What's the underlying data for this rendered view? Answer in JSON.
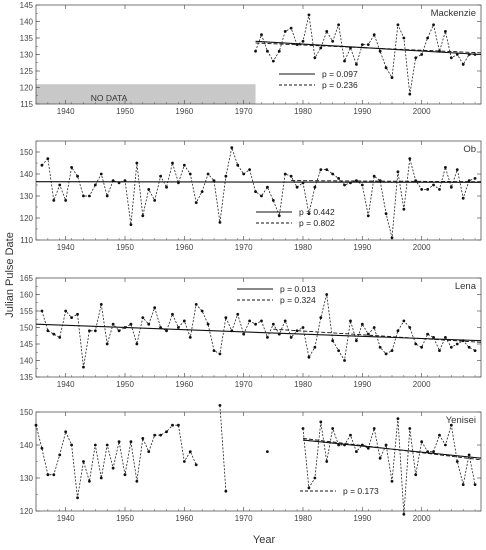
{
  "figure": {
    "ylabel": "Julian Pulse Date",
    "xlabel": "Year"
  },
  "chart_data": [
    {
      "type": "line",
      "panel_label": "Mackenzie",
      "xlim": [
        1935,
        2010
      ],
      "ylim": [
        115,
        145
      ],
      "yticks": [
        115,
        120,
        125,
        130,
        135,
        140,
        145
      ],
      "xticks": [
        1940,
        1950,
        1960,
        1970,
        1980,
        1990,
        2000
      ],
      "no_data": {
        "label": "NO DATA",
        "x_from": 1935,
        "x_to": 1972,
        "y_from": 115,
        "y_to": 121
      },
      "x": [
        1972,
        1973,
        1974,
        1975,
        1976,
        1977,
        1978,
        1979,
        1980,
        1981,
        1982,
        1983,
        1984,
        1985,
        1986,
        1987,
        1988,
        1989,
        1990,
        1991,
        1992,
        1993,
        1994,
        1995,
        1996,
        1997,
        1998,
        1999,
        2000,
        2001,
        2002,
        2003,
        2004,
        2005,
        2006,
        2007,
        2008,
        2009
      ],
      "values": [
        131,
        136,
        131,
        128,
        131,
        137,
        138,
        133,
        134,
        142,
        129,
        132,
        137,
        134,
        139,
        128,
        132,
        127,
        133,
        133,
        136,
        131,
        126,
        123,
        139,
        135,
        118,
        129,
        130,
        135,
        139,
        131,
        137,
        129,
        130,
        127,
        130,
        130
      ],
      "trends": [
        {
          "style": "solid",
          "p_label": "p = 0.097",
          "x": [
            1972,
            2010
          ],
          "y": [
            134,
            130
          ]
        },
        {
          "style": "dashed",
          "p_label": "p = 0.236",
          "x": [
            1972,
            2010
          ],
          "y": [
            133.5,
            130.5
          ]
        }
      ]
    },
    {
      "type": "line",
      "panel_label": "Ob",
      "xlim": [
        1935,
        2010
      ],
      "ylim": [
        110,
        155
      ],
      "yticks": [
        110,
        120,
        130,
        140,
        150
      ],
      "xticks": [
        1940,
        1950,
        1960,
        1970,
        1980,
        1990,
        2000
      ],
      "x": [
        1936,
        1937,
        1938,
        1939,
        1940,
        1941,
        1942,
        1943,
        1944,
        1945,
        1946,
        1947,
        1948,
        1949,
        1950,
        1951,
        1952,
        1953,
        1954,
        1955,
        1956,
        1957,
        1958,
        1959,
        1960,
        1961,
        1962,
        1963,
        1964,
        1965,
        1966,
        1967,
        1968,
        1969,
        1970,
        1971,
        1972,
        1973,
        1974,
        1975,
        1976,
        1977,
        1978,
        1979,
        1980,
        1981,
        1982,
        1983,
        1984,
        1985,
        1986,
        1987,
        1988,
        1989,
        1990,
        1991,
        1992,
        1993,
        1994,
        1995,
        1996,
        1997,
        1998,
        1999,
        2000,
        2001,
        2002,
        2003,
        2004,
        2005,
        2006,
        2007,
        2008,
        2009
      ],
      "values": [
        144,
        147,
        128,
        135,
        128,
        143,
        139,
        130,
        130,
        135,
        140,
        130,
        137,
        136,
        137,
        117,
        145,
        121,
        133,
        128,
        139,
        134,
        145,
        136,
        144,
        140,
        127,
        132,
        140,
        137,
        118,
        139,
        152,
        144,
        140,
        142,
        132,
        130,
        134,
        128,
        121,
        140,
        139,
        134,
        136,
        122,
        134,
        142,
        142,
        140,
        138,
        135,
        136,
        137,
        135,
        121,
        139,
        137,
        122,
        111,
        141,
        124,
        147,
        137,
        133,
        133,
        135,
        133,
        143,
        134,
        142,
        129,
        137,
        138
      ],
      "trends": [
        {
          "style": "solid",
          "p_label": "p = 0.442",
          "x": [
            1935,
            2010
          ],
          "y": [
            136.5,
            136.2
          ]
        },
        {
          "style": "dashed",
          "p_label": "p = 0.802",
          "x": [
            1978,
            2010
          ],
          "y": [
            137,
            136.5
          ]
        }
      ]
    },
    {
      "type": "line",
      "panel_label": "Lena",
      "xlim": [
        1935,
        2010
      ],
      "ylim": [
        135,
        165
      ],
      "yticks": [
        135,
        140,
        145,
        150,
        155,
        160,
        165
      ],
      "xticks": [
        1940,
        1950,
        1960,
        1970,
        1980,
        1990,
        2000
      ],
      "x": [
        1936,
        1937,
        1938,
        1939,
        1940,
        1941,
        1942,
        1943,
        1944,
        1945,
        1946,
        1947,
        1948,
        1949,
        1950,
        1951,
        1952,
        1953,
        1954,
        1955,
        1956,
        1957,
        1958,
        1959,
        1960,
        1961,
        1962,
        1963,
        1964,
        1965,
        1966,
        1967,
        1968,
        1969,
        1970,
        1971,
        1972,
        1973,
        1974,
        1975,
        1976,
        1977,
        1978,
        1979,
        1980,
        1981,
        1982,
        1983,
        1984,
        1985,
        1986,
        1987,
        1988,
        1989,
        1990,
        1991,
        1992,
        1993,
        1994,
        1995,
        1996,
        1997,
        1998,
        1999,
        2000,
        2001,
        2002,
        2003,
        2004,
        2005,
        2006,
        2007,
        2008,
        2009
      ],
      "values": [
        155,
        149,
        148,
        147,
        155,
        153,
        154,
        138,
        149,
        149,
        157,
        145,
        151,
        149,
        150,
        151,
        145,
        153,
        151,
        156,
        150,
        149,
        154,
        150,
        152,
        147,
        157,
        155,
        151,
        143,
        142,
        153,
        149,
        154,
        148,
        152,
        151,
        152,
        147,
        151,
        148,
        152,
        147,
        149,
        150,
        141,
        144,
        153,
        160,
        146,
        143,
        140,
        152,
        146,
        151,
        148,
        150,
        144,
        142,
        143,
        149,
        152,
        150,
        145,
        144,
        148,
        147,
        143,
        147,
        144,
        145,
        146,
        144,
        143
      ],
      "trends": [
        {
          "style": "solid",
          "p_label": "p = 0.013",
          "x": [
            1935,
            2010
          ],
          "y": [
            151,
            146
          ]
        },
        {
          "style": "dashed",
          "p_label": "p = 0.324",
          "x": [
            1975,
            2010
          ],
          "y": [
            149.5,
            145.5
          ]
        }
      ]
    },
    {
      "type": "line",
      "panel_label": "Yenisei",
      "xlim": [
        1935,
        2010
      ],
      "ylim": [
        120,
        150
      ],
      "yticks": [
        120,
        130,
        140,
        150
      ],
      "xticks": [
        1940,
        1950,
        1960,
        1970,
        1980,
        1990,
        2000
      ],
      "segments": [
        {
          "x": [
            1935,
            1936,
            1937,
            1938,
            1939,
            1940,
            1941,
            1942,
            1943,
            1944,
            1945,
            1946,
            1947,
            1948,
            1949,
            1950,
            1951,
            1952,
            1953,
            1954,
            1955,
            1956,
            1957,
            1958,
            1959,
            1960,
            1961,
            1962
          ],
          "y": [
            146,
            139,
            131,
            131,
            137,
            144,
            140,
            124,
            135,
            129,
            140,
            130,
            140,
            133,
            141,
            131,
            141,
            129,
            142,
            138,
            143,
            143,
            144,
            146,
            146,
            135,
            138,
            134
          ]
        },
        {
          "x": [
            1966,
            1967
          ],
          "y": [
            152,
            126
          ]
        },
        {
          "x": [
            1974
          ],
          "y": [
            138
          ]
        },
        {
          "x": [
            1980,
            1981,
            1982,
            1983,
            1984,
            1985,
            1986,
            1987,
            1988,
            1989,
            1990,
            1991,
            1992,
            1993,
            1994,
            1995,
            1996,
            1997,
            1998,
            1999,
            2000,
            2001,
            2002,
            2003,
            2004,
            2005,
            2006,
            2007,
            2008,
            2009
          ],
          "y": [
            145,
            127,
            130,
            147,
            135,
            145,
            140,
            140,
            143,
            138,
            140,
            139,
            145,
            136,
            140,
            129,
            148,
            119,
            145,
            131,
            141,
            138,
            138,
            143,
            140,
            146,
            135,
            128,
            137,
            128
          ]
        }
      ],
      "trends": [
        {
          "style": "dashed",
          "p_label": "p = 0.173",
          "x": [
            1980,
            2010
          ],
          "y": [
            142,
            135.5
          ]
        },
        {
          "style": "solid",
          "p_label": "",
          "x": [
            1980,
            2010
          ],
          "y": [
            141.5,
            136
          ]
        }
      ]
    }
  ]
}
